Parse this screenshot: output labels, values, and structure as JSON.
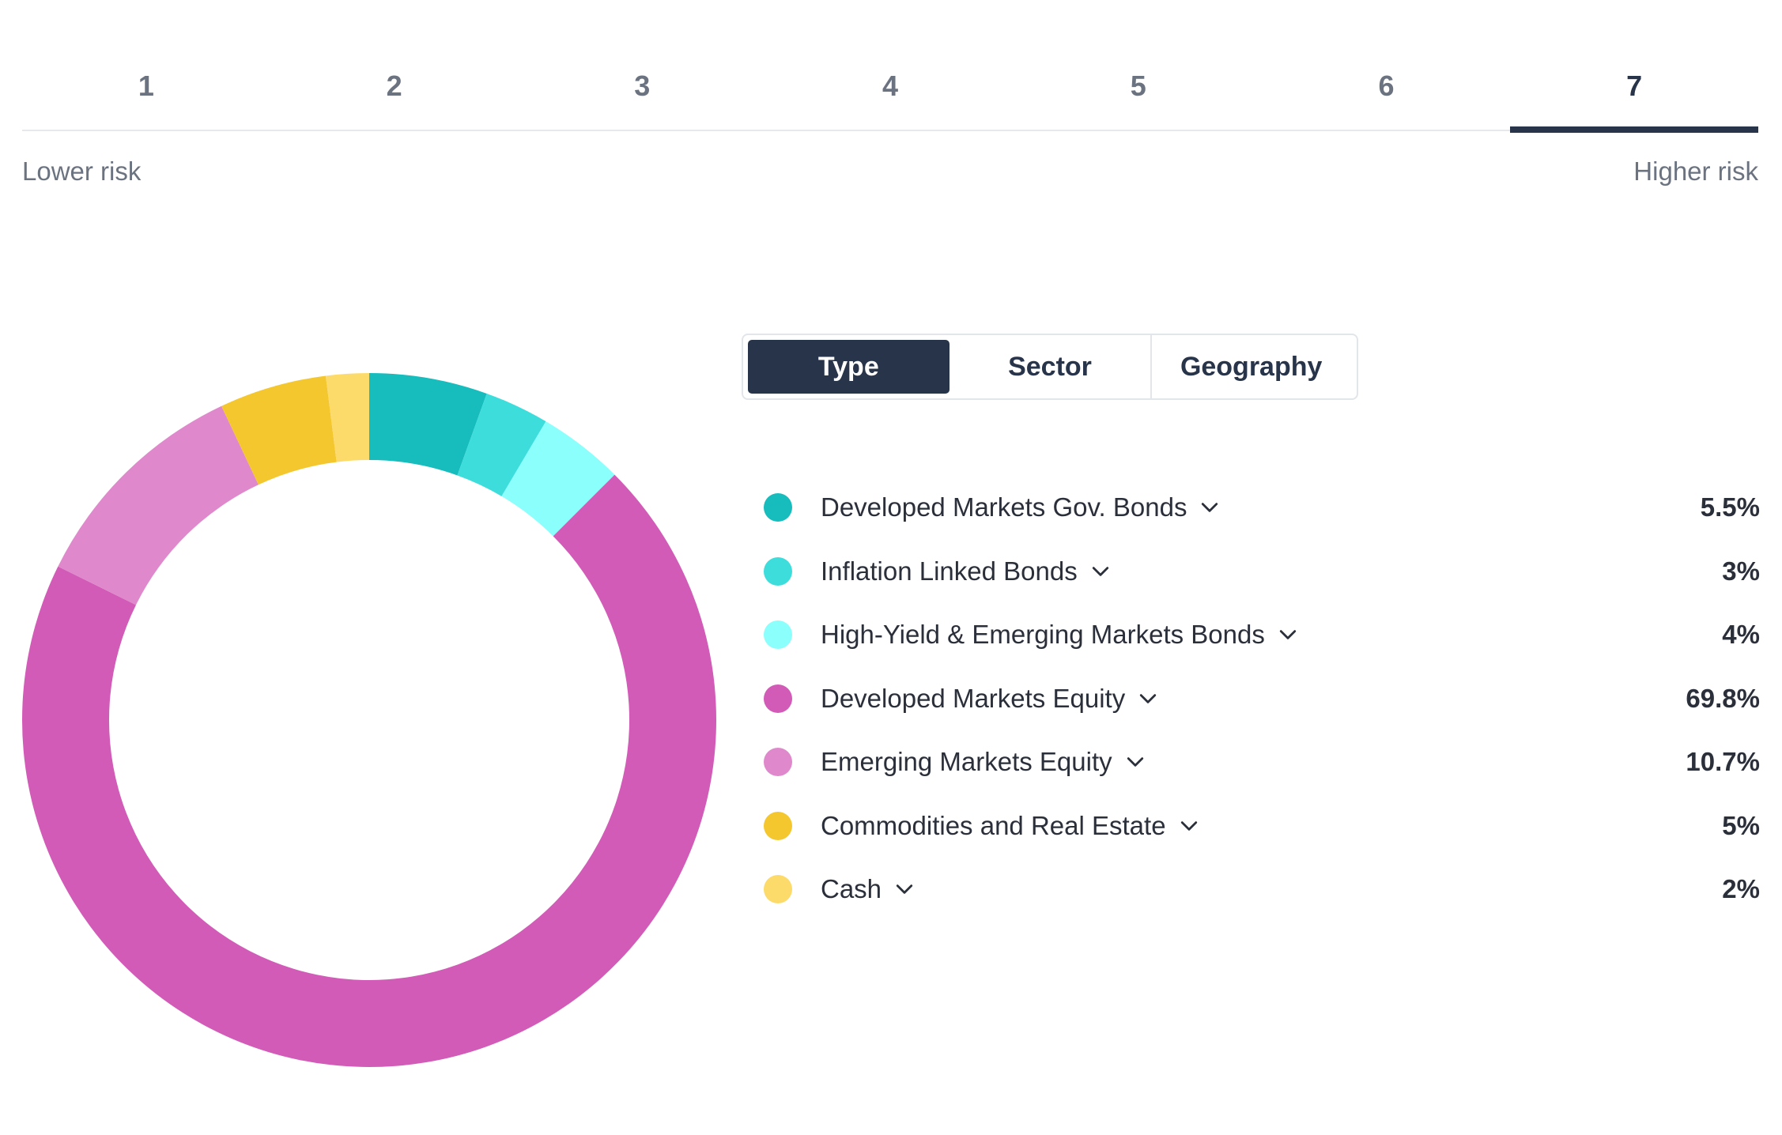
{
  "risk_scale": {
    "levels": [
      "1",
      "2",
      "3",
      "4",
      "5",
      "6",
      "7"
    ],
    "selected_index": 6,
    "lower_label": "Lower risk",
    "higher_label": "Higher risk"
  },
  "view_toggle": {
    "options": [
      "Type",
      "Sector",
      "Geography"
    ],
    "selected": "Type"
  },
  "chart_data": {
    "type": "pie",
    "categories": [
      "Developed Markets Gov. Bonds",
      "Inflation Linked Bonds",
      "High-Yield & Emerging Markets Bonds",
      "Developed Markets Equity",
      "Emerging Markets Equity",
      "Commodities and Real Estate",
      "Cash"
    ],
    "values": [
      5.5,
      3,
      4,
      69.8,
      10.7,
      5,
      2
    ],
    "labels": [
      "5.5%",
      "3%",
      "4%",
      "69.8%",
      "10.7%",
      "5%",
      "2%"
    ],
    "colors": [
      "#17bcbd",
      "#3ddddc",
      "#8afffc",
      "#d25bb7",
      "#e088cc",
      "#f4c72f",
      "#fddb6a"
    ],
    "legend_icon": "chevron-down-icon"
  }
}
